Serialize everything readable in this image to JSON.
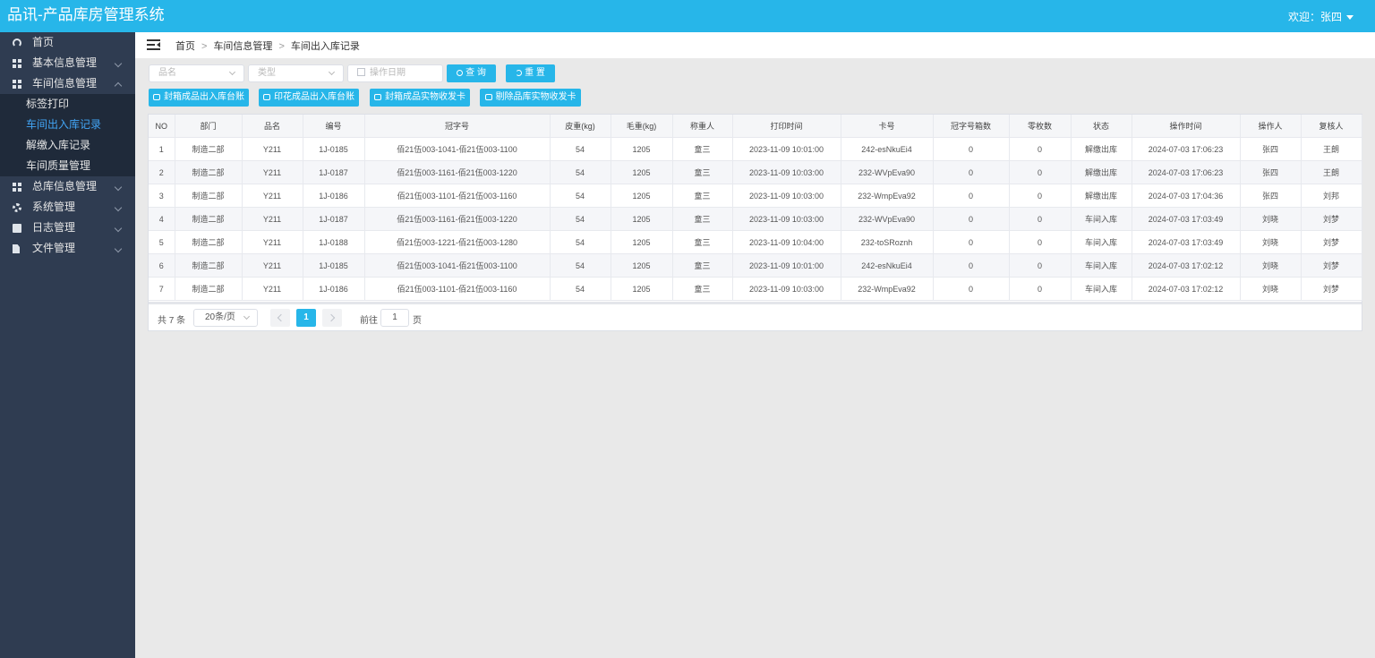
{
  "header": {
    "title": "品讯-产品库房管理系统",
    "user_label": "欢迎：张四"
  },
  "sidebar": {
    "items": [
      {
        "label": "首页",
        "icon": "dashboard-icon"
      },
      {
        "label": "基本信息管理",
        "icon": "grid-icon"
      },
      {
        "label": "车间信息管理",
        "icon": "grid-icon",
        "expanded": true,
        "children": [
          {
            "label": "标签打印"
          },
          {
            "label": "车间出入库记录",
            "active": true
          },
          {
            "label": "解缴入库记录"
          },
          {
            "label": "车间质量管理"
          }
        ]
      },
      {
        "label": "总库信息管理",
        "icon": "grid-icon"
      },
      {
        "label": "系统管理",
        "icon": "gear-icon"
      },
      {
        "label": "日志管理",
        "icon": "book-icon"
      },
      {
        "label": "文件管理",
        "icon": "file-export-icon"
      }
    ]
  },
  "breadcrumb": {
    "home": "首页",
    "level1": "车间信息管理",
    "level2": "车间出入库记录",
    "sep": ">"
  },
  "filters": {
    "product_placeholder": "品名",
    "type_placeholder": "类型",
    "date_placeholder": "操作日期",
    "search_label": "查 询",
    "reset_label": "重 置"
  },
  "actions": {
    "btn1": "封箱成品出入库台账",
    "btn2": "印花成品出入库台账",
    "btn3": "封箱成品实物收发卡",
    "btn4": "剔除品库实物收发卡"
  },
  "table": {
    "columns": [
      "NO",
      "部门",
      "品名",
      "编号",
      "冠字号",
      "皮重(kg)",
      "毛重(kg)",
      "称重人",
      "打印时间",
      "卡号",
      "冠字号箱数",
      "零枚数",
      "状态",
      "操作时间",
      "操作人",
      "复核人"
    ],
    "rows": [
      [
        "1",
        "制造二部",
        "Y211",
        "1J-0185",
        "佰21伍003-1041-佰21伍003-1100",
        "54",
        "1205",
        "童三",
        "2023-11-09 10:01:00",
        "242-esNkuEi4",
        "0",
        "0",
        "解缴出库",
        "2024-07-03 17:06:23",
        "张四",
        "王朗"
      ],
      [
        "2",
        "制造二部",
        "Y211",
        "1J-0187",
        "佰21伍003-1161-佰21伍003-1220",
        "54",
        "1205",
        "童三",
        "2023-11-09 10:03:00",
        "232-WVpEva90",
        "0",
        "0",
        "解缴出库",
        "2024-07-03 17:06:23",
        "张四",
        "王朗"
      ],
      [
        "3",
        "制造二部",
        "Y211",
        "1J-0186",
        "佰21伍003-1101-佰21伍003-1160",
        "54",
        "1205",
        "童三",
        "2023-11-09 10:03:00",
        "232-WmpEva92",
        "0",
        "0",
        "解缴出库",
        "2024-07-03 17:04:36",
        "张四",
        "刘邦"
      ],
      [
        "4",
        "制造二部",
        "Y211",
        "1J-0187",
        "佰21伍003-1161-佰21伍003-1220",
        "54",
        "1205",
        "童三",
        "2023-11-09 10:03:00",
        "232-WVpEva90",
        "0",
        "0",
        "车间入库",
        "2024-07-03 17:03:49",
        "刘晓",
        "刘梦"
      ],
      [
        "5",
        "制造二部",
        "Y211",
        "1J-0188",
        "佰21伍003-1221-佰21伍003-1280",
        "54",
        "1205",
        "童三",
        "2023-11-09 10:04:00",
        "232-toSRoznh",
        "0",
        "0",
        "车间入库",
        "2024-07-03 17:03:49",
        "刘晓",
        "刘梦"
      ],
      [
        "6",
        "制造二部",
        "Y211",
        "1J-0185",
        "佰21伍003-1041-佰21伍003-1100",
        "54",
        "1205",
        "童三",
        "2023-11-09 10:01:00",
        "242-esNkuEi4",
        "0",
        "0",
        "车间入库",
        "2024-07-03 17:02:12",
        "刘晓",
        "刘梦"
      ],
      [
        "7",
        "制造二部",
        "Y211",
        "1J-0186",
        "佰21伍003-1101-佰21伍003-1160",
        "54",
        "1205",
        "童三",
        "2023-11-09 10:03:00",
        "232-WmpEva92",
        "0",
        "0",
        "车间入库",
        "2024-07-03 17:02:12",
        "刘晓",
        "刘梦"
      ]
    ]
  },
  "pagination": {
    "total_label": "共 7 条",
    "page_size": "20条/页",
    "current_page": "1",
    "goto_prefix": "前往",
    "goto_value": "1",
    "goto_suffix": "页"
  },
  "colors": {
    "accent": "#27b6e9",
    "sidebar_bg": "#2f3c51",
    "submenu_bg": "#1f2a3a",
    "active_link": "#42a5f5"
  }
}
